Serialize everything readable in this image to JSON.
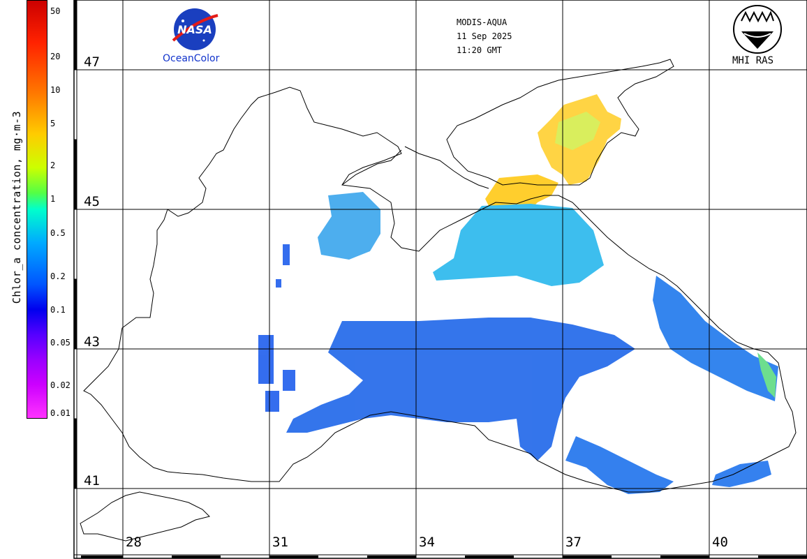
{
  "header": {
    "sensor": "MODIS-AQUA",
    "date": "11 Sep 2025",
    "time": "11:20 GMT"
  },
  "logos": {
    "left_badge": "NASA",
    "left_caption": "OceanColor",
    "right_caption": "MHI RAS"
  },
  "colorbar": {
    "title": "Chlor_a concentration, mg·m-3",
    "ticks": [
      "50",
      "20",
      "10",
      "5",
      "2",
      "1",
      "0.5",
      "0.2",
      "0.1",
      "0.05",
      "0.02",
      "0.01"
    ],
    "scale": "log"
  },
  "map": {
    "latitudes": [
      "47",
      "45",
      "43",
      "41"
    ],
    "longitudes": [
      "28",
      "31",
      "34",
      "37",
      "40"
    ],
    "colors": {
      "coast": "#000000",
      "grid": "#000000",
      "high_chl": "#ffcc33",
      "mid_chl": "#22ccee",
      "low_chl": "#2266ee"
    }
  }
}
